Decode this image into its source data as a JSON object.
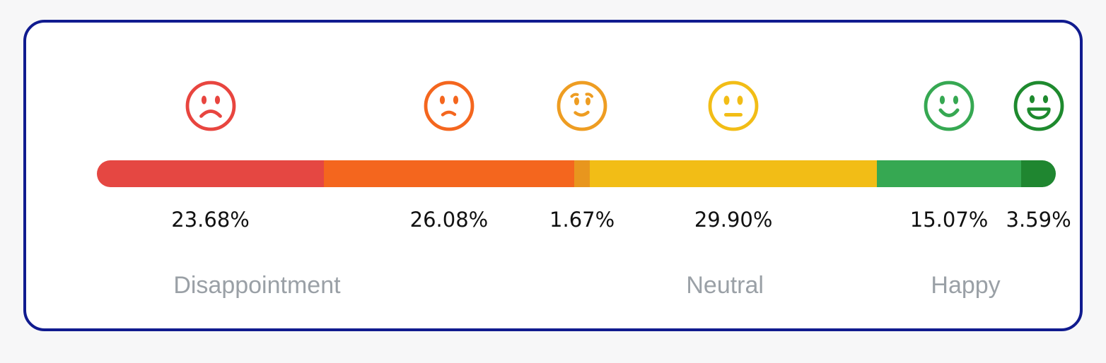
{
  "card": {
    "background": "#ffffff",
    "border_color": "#101b8f"
  },
  "scale": {
    "segments": [
      {
        "id": "disappointed",
        "face_icon": "sad-face-icon",
        "face_color": "#e8453f",
        "bar_color": "#e54742",
        "percent": 23.68,
        "center_percent": 11.84,
        "value_label": "23.68%"
      },
      {
        "id": "unhappy",
        "face_icon": "frowning-face-icon",
        "face_color": "#f4661e",
        "bar_color": "#f4661e",
        "percent": 26.08,
        "center_percent": 36.72,
        "value_label": "26.08%"
      },
      {
        "id": "slightly-happy",
        "face_icon": "slightly-smiling-face-icon",
        "face_color": "#ee9d22",
        "bar_color": "#e8961e",
        "percent": 1.67,
        "center_percent": 50.6,
        "value_label": "1.67%"
      },
      {
        "id": "neutral",
        "face_icon": "neutral-face-icon",
        "face_color": "#f2bd16",
        "bar_color": "#f2bd16",
        "percent": 29.9,
        "center_percent": 66.38,
        "value_label": "29.90%"
      },
      {
        "id": "happy",
        "face_icon": "smiling-face-icon",
        "face_color": "#36a852",
        "bar_color": "#36a852",
        "percent": 15.07,
        "center_percent": 88.87,
        "value_label": "15.07%"
      },
      {
        "id": "very-happy",
        "face_icon": "grinning-face-icon",
        "face_color": "#1e8a2e",
        "bar_color": "#1f8630",
        "percent": 3.59,
        "center_percent": 98.2,
        "value_label": "3.59%"
      }
    ],
    "category_labels": [
      {
        "text": "Disappointment",
        "left_percent": 16.7
      },
      {
        "text": "Neutral",
        "left_percent": 65.5
      },
      {
        "text": "Happy",
        "left_percent": 90.6
      }
    ],
    "category_label_color": "#9aa0a6"
  },
  "chart_data": {
    "type": "bar",
    "subtype": "horizontal-100%-stacked-sentiment-scale",
    "categories": [
      "Disappointed",
      "Unhappy",
      "Slightly happy",
      "Neutral",
      "Happy",
      "Very happy"
    ],
    "values": [
      23.68,
      26.08,
      1.67,
      29.9,
      15.07,
      3.59
    ],
    "value_labels": [
      "23.68%",
      "26.08%",
      "1.67%",
      "29.90%",
      "15.07%",
      "3.59%"
    ],
    "colors": [
      "#e54742",
      "#f4661e",
      "#e8961e",
      "#f2bd16",
      "#36a852",
      "#1f8630"
    ],
    "group_labels": [
      "Disappointment",
      "Neutral",
      "Happy"
    ],
    "title": "",
    "xlabel": "",
    "ylabel": "",
    "xlim": [
      0,
      100
    ],
    "grid": false,
    "legend": false
  }
}
